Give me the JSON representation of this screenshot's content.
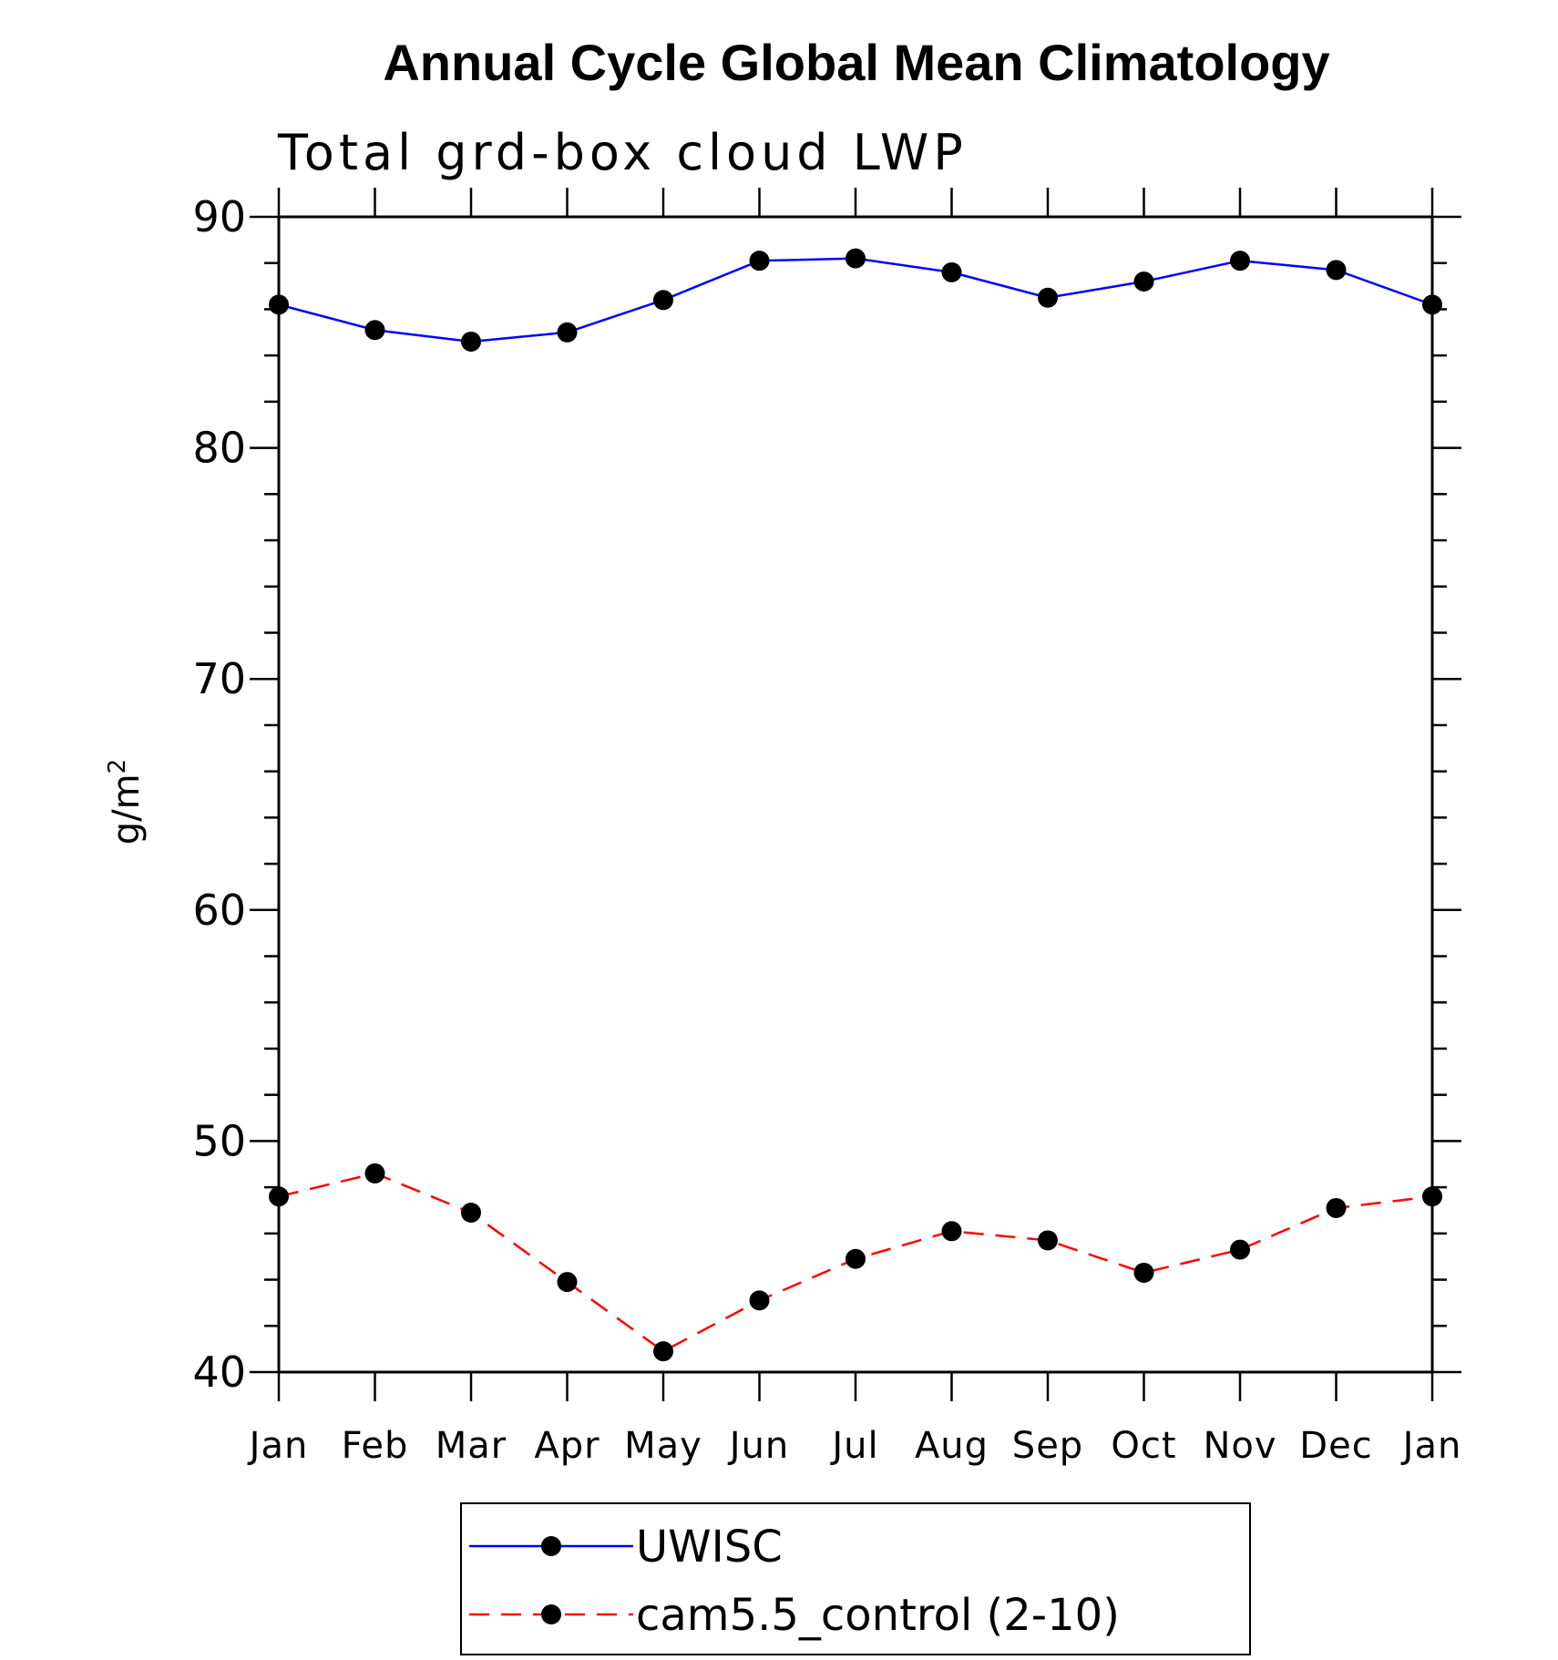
{
  "chart_data": {
    "type": "line",
    "title": "Annual Cycle Global Mean Climatology",
    "subtitle": "Total grd-box cloud LWP",
    "ylabel": "g/m",
    "ylabel_superscript": "2",
    "xlabel": "",
    "ylim": [
      40,
      90
    ],
    "y_major_ticks": [
      40,
      50,
      60,
      70,
      80,
      90
    ],
    "y_minor_step": 2,
    "categories": [
      "Jan",
      "Feb",
      "Mar",
      "Apr",
      "May",
      "Jun",
      "Jul",
      "Aug",
      "Sep",
      "Oct",
      "Nov",
      "Dec",
      "Jan"
    ],
    "series": [
      {
        "name": "UWISC",
        "color": "#0000ff",
        "line_style": "solid",
        "marker": "filled-circle",
        "values": [
          86.2,
          85.1,
          84.6,
          85.0,
          86.4,
          88.1,
          88.2,
          87.6,
          86.5,
          87.2,
          88.1,
          87.7,
          86.2
        ]
      },
      {
        "name": "cam5.5_control (2-10)",
        "color": "#ff0000",
        "line_style": "dashed",
        "marker": "filled-circle",
        "values": [
          47.6,
          48.6,
          46.9,
          43.9,
          40.9,
          43.1,
          44.9,
          46.1,
          45.7,
          44.3,
          45.3,
          47.1,
          47.6
        ]
      }
    ],
    "legend_position": "bottom-center",
    "grid": false
  }
}
